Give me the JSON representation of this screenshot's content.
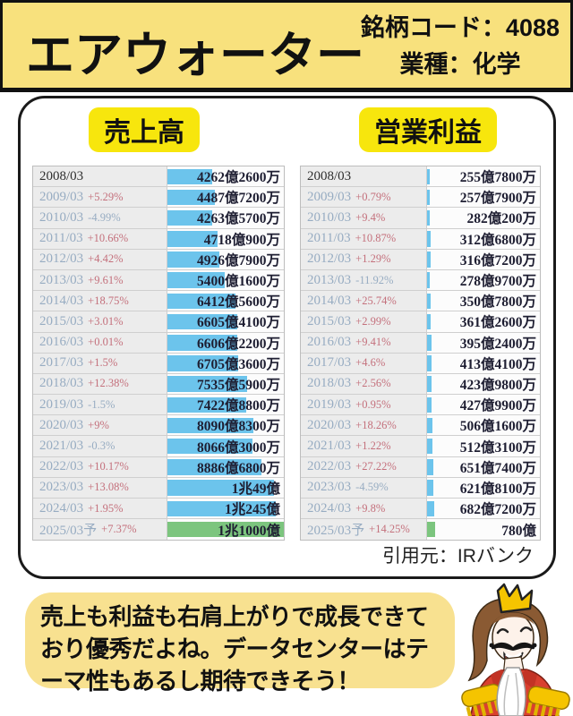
{
  "header": {
    "title": "エアウォーター",
    "code": "銘柄コード：4088",
    "industry": "業種：化学"
  },
  "sections": {
    "sales_label": "売上高",
    "profit_label": "営業利益"
  },
  "source_credit": "引用元：IRバンク",
  "bubble": {
    "lines": [
      "売上も利益も右肩上がりで成長できて",
      "おり優秀だよね。データセンターはテ",
      "ーマ性もあるし期待できそう！"
    ]
  },
  "colors": {
    "header_yellow": "#F8E17D",
    "label_yellow": "#F7E60D",
    "bubble_yellow": "#F8E190",
    "bar_blue": "#6CC4EC",
    "bar_green_forecast": "#7CC57E",
    "pct_up_red": "#C4707C",
    "pct_down_blue": "#97ACC2",
    "year_text": "#97ACC2",
    "value_text": "#1E1E32"
  },
  "chart_data": [
    {
      "type": "bar",
      "title": "売上高",
      "unit": "億円",
      "orientation": "horizontal",
      "bar_scale_max_oku": 11000,
      "grid": false,
      "rows": [
        {
          "period": "2008/03",
          "change": "",
          "value_oku": 4262.26,
          "label": "4262億2600万",
          "forecast": false
        },
        {
          "period": "2009/03",
          "change": "+5.29%",
          "value_oku": 4487.72,
          "label": "4487億7200万",
          "forecast": false
        },
        {
          "period": "2010/03",
          "change": "-4.99%",
          "value_oku": 4263.57,
          "label": "4263億5700万",
          "forecast": false
        },
        {
          "period": "2011/03",
          "change": "+10.66%",
          "value_oku": 4718.09,
          "label": "4718億900万",
          "forecast": false
        },
        {
          "period": "2012/03",
          "change": "+4.42%",
          "value_oku": 4926.79,
          "label": "4926億7900万",
          "forecast": false
        },
        {
          "period": "2013/03",
          "change": "+9.61%",
          "value_oku": 5400.16,
          "label": "5400億1600万",
          "forecast": false
        },
        {
          "period": "2014/03",
          "change": "+18.75%",
          "value_oku": 6412.56,
          "label": "6412億5600万",
          "forecast": false
        },
        {
          "period": "2015/03",
          "change": "+3.01%",
          "value_oku": 6605.41,
          "label": "6605億4100万",
          "forecast": false
        },
        {
          "period": "2016/03",
          "change": "+0.01%",
          "value_oku": 6606.22,
          "label": "6606億2200万",
          "forecast": false
        },
        {
          "period": "2017/03",
          "change": "+1.5%",
          "value_oku": 6705.36,
          "label": "6705億3600万",
          "forecast": false
        },
        {
          "period": "2018/03",
          "change": "+12.38%",
          "value_oku": 7535.59,
          "label": "7535億5900万",
          "forecast": false
        },
        {
          "period": "2019/03",
          "change": "-1.5%",
          "value_oku": 7422.88,
          "label": "7422億8800万",
          "forecast": false
        },
        {
          "period": "2020/03",
          "change": "+9%",
          "value_oku": 8090.83,
          "label": "8090億8300万",
          "forecast": false
        },
        {
          "period": "2021/03",
          "change": "-0.3%",
          "value_oku": 8066.3,
          "label": "8066億3000万",
          "forecast": false
        },
        {
          "period": "2022/03",
          "change": "+10.17%",
          "value_oku": 8886.68,
          "label": "8886億6800万",
          "forecast": false
        },
        {
          "period": "2023/03",
          "change": "+13.08%",
          "value_oku": 10049,
          "label": "1兆49億",
          "forecast": false
        },
        {
          "period": "2024/03",
          "change": "+1.95%",
          "value_oku": 10245,
          "label": "1兆245億",
          "forecast": false
        },
        {
          "period": "2025/03予",
          "change": "+7.37%",
          "value_oku": 11000,
          "label": "1兆1000億",
          "forecast": true
        }
      ]
    },
    {
      "type": "bar",
      "title": "営業利益",
      "unit": "億円",
      "orientation": "horizontal",
      "bar_scale_max_oku": 11000,
      "grid": false,
      "rows": [
        {
          "period": "2008/03",
          "change": "",
          "value_oku": 255.78,
          "label": "255億7800万",
          "forecast": false
        },
        {
          "period": "2009/03",
          "change": "+0.79%",
          "value_oku": 257.79,
          "label": "257億7900万",
          "forecast": false
        },
        {
          "period": "2010/03",
          "change": "+9.4%",
          "value_oku": 282.02,
          "label": "282億200万",
          "forecast": false
        },
        {
          "period": "2011/03",
          "change": "+10.87%",
          "value_oku": 312.68,
          "label": "312億6800万",
          "forecast": false
        },
        {
          "period": "2012/03",
          "change": "+1.29%",
          "value_oku": 316.72,
          "label": "316億7200万",
          "forecast": false
        },
        {
          "period": "2013/03",
          "change": "-11.92%",
          "value_oku": 278.97,
          "label": "278億9700万",
          "forecast": false
        },
        {
          "period": "2014/03",
          "change": "+25.74%",
          "value_oku": 350.78,
          "label": "350億7800万",
          "forecast": false
        },
        {
          "period": "2015/03",
          "change": "+2.99%",
          "value_oku": 361.26,
          "label": "361億2600万",
          "forecast": false
        },
        {
          "period": "2016/03",
          "change": "+9.41%",
          "value_oku": 395.24,
          "label": "395億2400万",
          "forecast": false
        },
        {
          "period": "2017/03",
          "change": "+4.6%",
          "value_oku": 413.41,
          "label": "413億4100万",
          "forecast": false
        },
        {
          "period": "2018/03",
          "change": "+2.56%",
          "value_oku": 423.98,
          "label": "423億9800万",
          "forecast": false
        },
        {
          "period": "2019/03",
          "change": "+0.95%",
          "value_oku": 427.99,
          "label": "427億9900万",
          "forecast": false
        },
        {
          "period": "2020/03",
          "change": "+18.26%",
          "value_oku": 506.16,
          "label": "506億1600万",
          "forecast": false
        },
        {
          "period": "2021/03",
          "change": "+1.22%",
          "value_oku": 512.31,
          "label": "512億3100万",
          "forecast": false
        },
        {
          "period": "2022/03",
          "change": "+27.22%",
          "value_oku": 651.74,
          "label": "651億7400万",
          "forecast": false
        },
        {
          "period": "2023/03",
          "change": "-4.59%",
          "value_oku": 621.81,
          "label": "621億8100万",
          "forecast": false
        },
        {
          "period": "2024/03",
          "change": "+9.8%",
          "value_oku": 682.72,
          "label": "682億7200万",
          "forecast": false
        },
        {
          "period": "2025/03予",
          "change": "+14.25%",
          "value_oku": 780,
          "label": "780億",
          "forecast": true
        }
      ]
    }
  ]
}
